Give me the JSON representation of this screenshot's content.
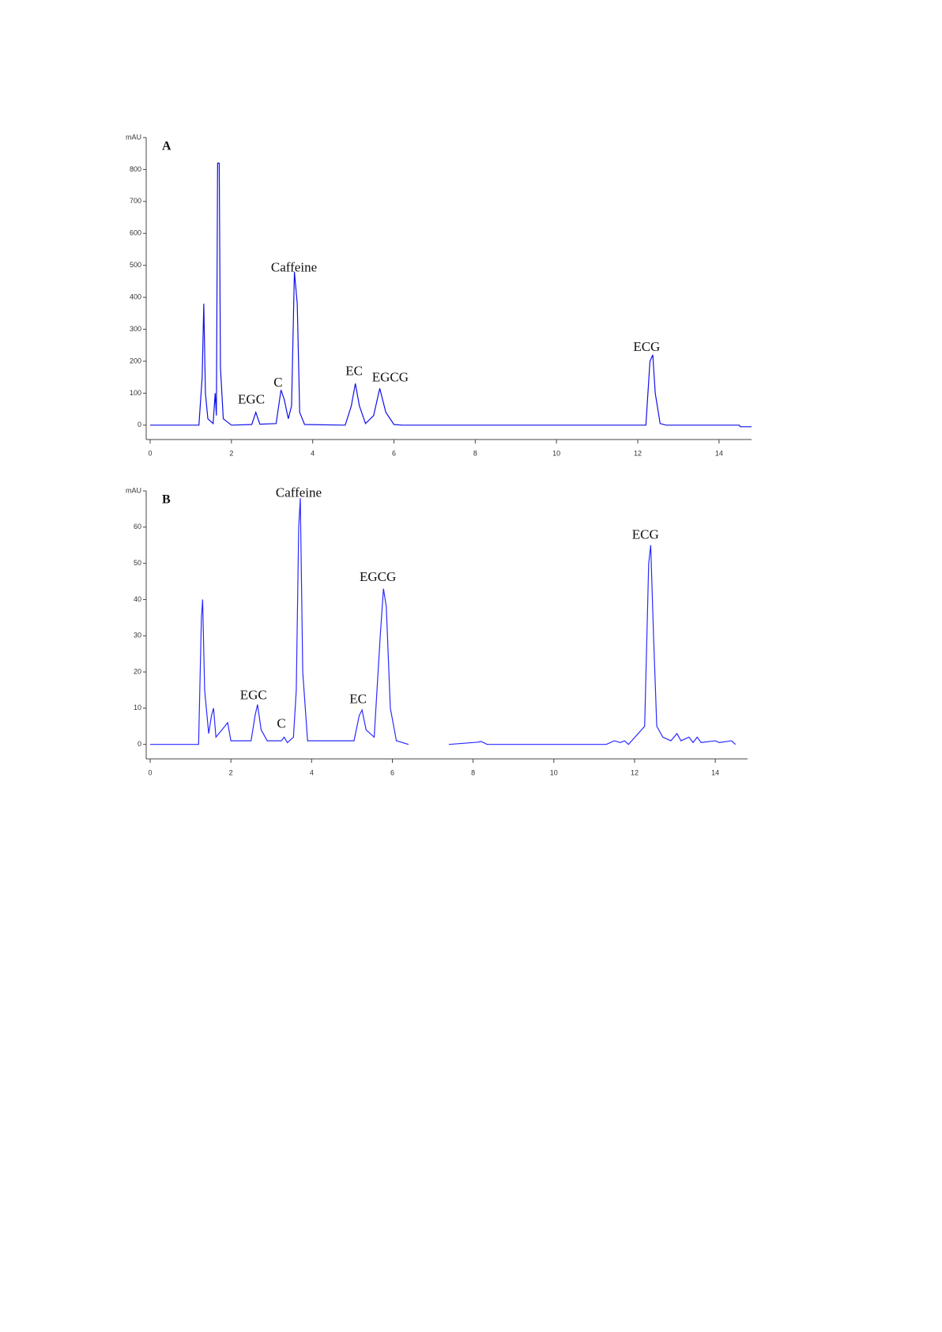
{
  "chart_data": [
    {
      "type": "line",
      "label": "A",
      "x": [
        0,
        1.2,
        1.28,
        1.32,
        1.36,
        1.42,
        1.55,
        1.6,
        1.63,
        1.66,
        1.7,
        1.73,
        1.8,
        2.0,
        2.5,
        2.6,
        2.7,
        3.1,
        3.22,
        3.3,
        3.4,
        3.48,
        3.55,
        3.62,
        3.68,
        3.8,
        4.8,
        4.95,
        5.05,
        5.15,
        5.3,
        5.5,
        5.65,
        5.8,
        6.0,
        6.2,
        12.2,
        12.3,
        12.37,
        12.43,
        12.55,
        12.7,
        14.5,
        14.52,
        14.8
      ],
      "series": [
        {
          "color": "#1010e8",
          "values": [
            0,
            0,
            150,
            380,
            100,
            20,
            5,
            100,
            30,
            820,
            820,
            180,
            20,
            0,
            2,
            40,
            3,
            5,
            110,
            80,
            20,
            60,
            480,
            380,
            40,
            2,
            0,
            60,
            130,
            60,
            5,
            30,
            115,
            40,
            2,
            0,
            0,
            200,
            220,
            100,
            5,
            0,
            0,
            -5,
            -5
          ]
        }
      ],
      "xlim": [
        0,
        14.8
      ],
      "ylim": [
        -45,
        900
      ],
      "xticks": [
        0,
        2,
        4,
        6,
        8,
        10,
        12,
        14
      ],
      "yticks": [
        0,
        100,
        200,
        300,
        400,
        500,
        600,
        700,
        800,
        {
          "value": 900,
          "label": "mAU"
        }
      ],
      "annotations": [
        {
          "text": "EGC",
          "x": 2.49,
          "y": 77
        },
        {
          "text": "C",
          "x": 3.15,
          "y": 130
        },
        {
          "text": "Caffeine",
          "x": 3.54,
          "y": 490
        },
        {
          "text": "EC",
          "x": 5.02,
          "y": 166
        },
        {
          "text": "EGCG",
          "x": 5.91,
          "y": 146
        },
        {
          "text": "ECG",
          "x": 12.22,
          "y": 242
        }
      ]
    },
    {
      "type": "line",
      "label": "B",
      "x": [
        0,
        1.2,
        1.27,
        1.3,
        1.35,
        1.45,
        1.52,
        1.57,
        1.63,
        1.85,
        1.92,
        2.0,
        2.5,
        2.6,
        2.66,
        2.75,
        2.9,
        3.25,
        3.32,
        3.4,
        3.55,
        3.62,
        3.68,
        3.72,
        3.78,
        3.9,
        5.05,
        5.18,
        5.25,
        5.35,
        5.55,
        5.7,
        5.78,
        5.85,
        5.95,
        6.1,
        6.4,
        null,
        7.4,
        8.1,
        8.2,
        8.35,
        11.3,
        11.5,
        11.65,
        11.75,
        11.85,
        12.25,
        12.35,
        12.4,
        12.47,
        12.55,
        12.7,
        12.9,
        13.05,
        13.15,
        13.35,
        13.45,
        13.55,
        13.65,
        14.0,
        14.1,
        14.4,
        14.5
      ],
      "series": [
        {
          "color": "#2a2aff",
          "values": [
            0,
            0,
            35,
            40,
            15,
            3,
            8,
            10,
            2,
            5,
            6,
            1,
            1,
            8,
            11,
            4,
            1,
            1,
            2,
            0.5,
            2,
            15,
            60,
            68,
            20,
            1,
            1,
            8,
            9.5,
            4,
            2,
            30,
            43,
            38,
            10,
            1,
            0,
            null,
            0,
            0.6,
            0.8,
            0,
            0,
            1,
            0.5,
            1,
            0,
            5,
            50,
            55,
            30,
            5,
            2,
            1,
            3,
            1,
            2,
            0.5,
            2,
            0.5,
            1,
            0.5,
            1,
            0
          ]
        }
      ],
      "xlim": [
        0,
        14.8
      ],
      "ylim": [
        -4,
        70
      ],
      "xticks": [
        0,
        2,
        4,
        6,
        8,
        10,
        12,
        14
      ],
      "yticks": [
        0,
        10,
        20,
        30,
        40,
        50,
        60,
        {
          "value": 70,
          "label": "mAU"
        }
      ],
      "annotations": [
        {
          "text": "EGC",
          "x": 2.56,
          "y": 13.3
        },
        {
          "text": "C",
          "x": 3.25,
          "y": 5.5
        },
        {
          "text": "Caffeine",
          "x": 3.68,
          "y": 69.2
        },
        {
          "text": "EC",
          "x": 5.15,
          "y": 12.2
        },
        {
          "text": "EGCG",
          "x": 5.64,
          "y": 46
        },
        {
          "text": "ECG",
          "x": 12.27,
          "y": 57.6
        }
      ]
    }
  ]
}
